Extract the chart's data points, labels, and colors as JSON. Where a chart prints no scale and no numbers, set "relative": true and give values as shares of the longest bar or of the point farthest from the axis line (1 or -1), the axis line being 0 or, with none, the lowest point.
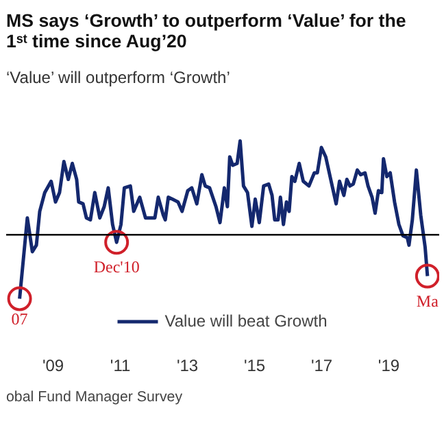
{
  "chart_data": {
    "type": "line",
    "title": "MS says ‘Growth’ to outperform ‘Value’ for the 1ˢᵗ time since Aug’20",
    "subtitle": "‘Value’ will outperform ‘Growth’",
    "relative": true,
    "xlim": [
      2007.6,
      2020.5
    ],
    "xticks": [
      {
        "value": 2009,
        "label": "'09"
      },
      {
        "value": 2011,
        "label": "'11"
      },
      {
        "value": 2013,
        "label": "'13"
      },
      {
        "value": 2015,
        "label": "'15"
      },
      {
        "value": 2017,
        "label": "'17"
      },
      {
        "value": 2019,
        "label": "'19"
      }
    ],
    "series": [
      {
        "name": "Value will beat Growth",
        "color": "#14286e",
        "x": [
          2008.0,
          2008.23,
          2008.38,
          2008.5,
          2008.6,
          2008.75,
          2008.94,
          2009.07,
          2009.19,
          2009.32,
          2009.45,
          2009.57,
          2009.7,
          2009.76,
          2009.89,
          2009.99,
          2010.11,
          2010.24,
          2010.39,
          2010.52,
          2010.64,
          2010.77,
          2010.89,
          2011.02,
          2011.12,
          2011.3,
          2011.4,
          2011.58,
          2011.75,
          2012.03,
          2012.13,
          2012.28,
          2012.34,
          2012.43,
          2012.55,
          2012.72,
          2012.84,
          2013.01,
          2013.13,
          2013.28,
          2013.43,
          2013.53,
          2013.66,
          2013.85,
          2013.97,
          2014.1,
          2014.19,
          2014.26,
          2014.35,
          2014.48,
          2014.57,
          2014.67,
          2014.79,
          2014.92,
          2015.02,
          2015.14,
          2015.27,
          2015.42,
          2015.52,
          2015.6,
          2015.7,
          2015.77,
          2015.86,
          2015.95,
          2016.03,
          2016.11,
          2016.2,
          2016.33,
          2016.45,
          2016.62,
          2016.78,
          2016.87,
          2016.99,
          2017.12,
          2017.25,
          2017.43,
          2017.53,
          2017.66,
          2017.75,
          2017.84,
          2017.94,
          2018.06,
          2018.16,
          2018.29,
          2018.38,
          2018.5,
          2018.59,
          2018.69,
          2018.79,
          2018.84,
          2018.94,
          2019.04,
          2019.17,
          2019.3,
          2019.42,
          2019.55,
          2019.6,
          2019.7,
          2019.82,
          2019.95,
          2020.08,
          2020.15
        ],
        "values": [
          -0.68,
          0.18,
          -0.18,
          -0.11,
          0.25,
          0.45,
          0.57,
          0.35,
          0.45,
          0.78,
          0.59,
          0.76,
          0.59,
          0.35,
          0.33,
          0.18,
          0.16,
          0.45,
          0.18,
          0.3,
          0.5,
          0.11,
          -0.08,
          0.11,
          0.5,
          0.52,
          0.25,
          0.4,
          0.18,
          0.18,
          0.4,
          0.21,
          0.16,
          0.4,
          0.38,
          0.35,
          0.25,
          0.47,
          0.5,
          0.33,
          0.64,
          0.52,
          0.5,
          0.3,
          0.13,
          0.5,
          0.3,
          0.83,
          0.74,
          0.76,
          1.0,
          0.52,
          0.45,
          0.09,
          0.38,
          0.13,
          0.52,
          0.54,
          0.42,
          0.16,
          0.16,
          0.4,
          0.11,
          0.35,
          0.25,
          0.62,
          0.57,
          0.76,
          0.57,
          0.52,
          0.66,
          0.66,
          0.93,
          0.83,
          0.62,
          0.33,
          0.57,
          0.42,
          0.59,
          0.52,
          0.54,
          0.69,
          0.64,
          0.66,
          0.52,
          0.4,
          0.23,
          0.47,
          0.45,
          0.81,
          0.62,
          0.66,
          0.35,
          0.11,
          -0.01,
          -0.03,
          -0.11,
          0.16,
          0.69,
          0.21,
          -0.13,
          -0.44
        ]
      }
    ],
    "annotations": [
      {
        "text": "07",
        "x": 2008.0,
        "y": -0.68
      },
      {
        "text": "Dec'10",
        "x": 2010.89,
        "y": -0.08
      },
      {
        "text": "Ma",
        "x": 2020.15,
        "y": -0.44
      },
      "obal Fund Manager Survey"
    ],
    "legend": "bottom",
    "grid": false,
    "marker": "none",
    "line_style": "solid"
  }
}
